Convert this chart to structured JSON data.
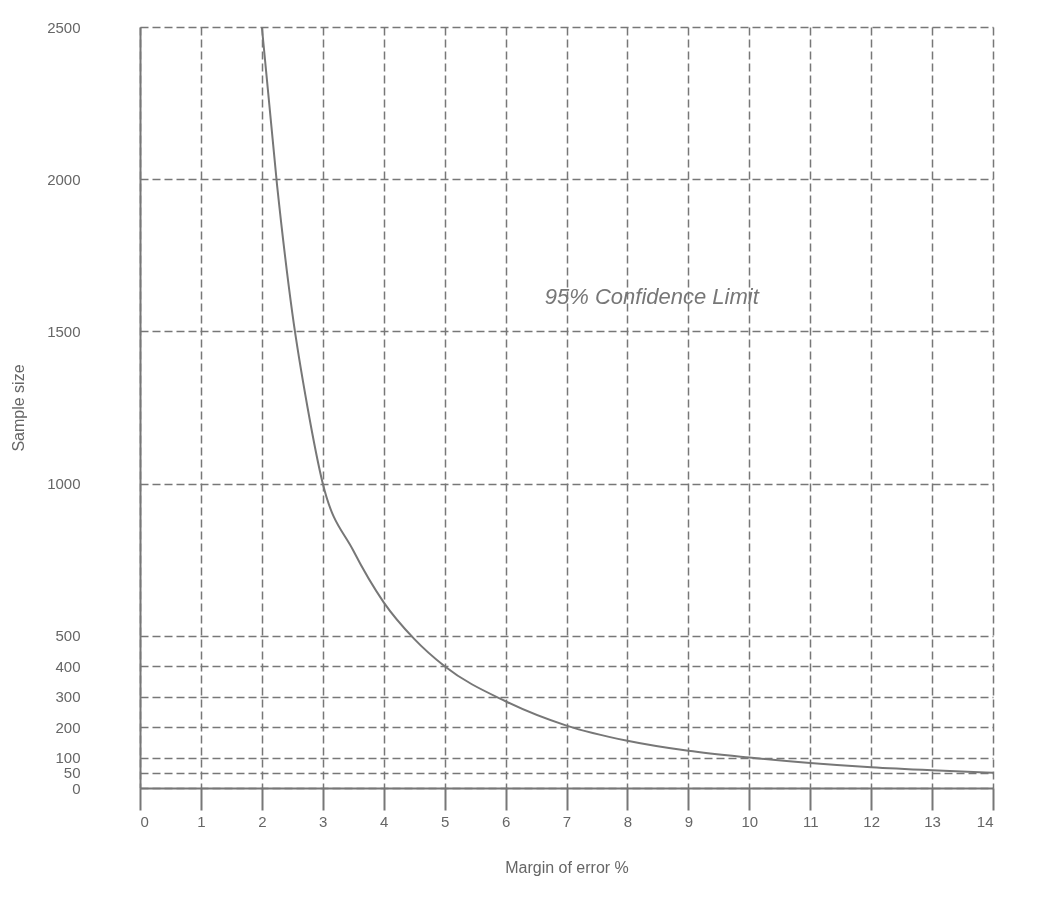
{
  "chart_data": {
    "type": "line",
    "xlabel": "Margin of error %",
    "ylabel": "Sample size",
    "x": [
      2,
      2.25,
      2.5,
      2.75,
      3,
      3.5,
      4,
      4.5,
      5,
      6,
      7,
      8,
      9,
      10,
      11,
      12,
      13,
      14
    ],
    "series": [
      {
        "color": "#777777",
        "values": [
          2500,
          1980,
          1560,
          1250,
          1000,
          780,
          610,
          490,
          400,
          285,
          205,
          155,
          122,
          100,
          82,
          68,
          58,
          50
        ]
      }
    ],
    "xlim": [
      0,
      14
    ],
    "xticks": [
      0,
      1,
      2,
      3,
      4,
      5,
      6,
      7,
      8,
      9,
      10,
      11,
      12,
      13,
      14
    ],
    "ylim": [
      0,
      2500
    ],
    "yticks": [
      0,
      50,
      100,
      200,
      300,
      400,
      500,
      1000,
      1500,
      2000,
      2500
    ],
    "grid": true,
    "marker": "none",
    "line_style": "solid",
    "annotations": [
      "95% Confidence Limit"
    ]
  }
}
